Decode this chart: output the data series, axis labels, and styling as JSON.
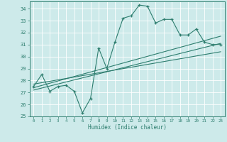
{
  "bg_color": "#cdeaea",
  "grid_color": "#b8d8d8",
  "line_color": "#2d7d6e",
  "xlabel": "Humidex (Indice chaleur)",
  "xlim": [
    -0.5,
    23.5
  ],
  "ylim": [
    25,
    34.6
  ],
  "yticks": [
    25,
    26,
    27,
    28,
    29,
    30,
    31,
    32,
    33,
    34
  ],
  "xticks": [
    0,
    1,
    2,
    3,
    4,
    5,
    6,
    7,
    8,
    9,
    10,
    11,
    12,
    13,
    14,
    15,
    16,
    17,
    18,
    19,
    20,
    21,
    22,
    23
  ],
  "series1_x": [
    0,
    1,
    2,
    3,
    4,
    5,
    6,
    7,
    8,
    9,
    10,
    11,
    12,
    13,
    14,
    15,
    16,
    17,
    18,
    19,
    20,
    21,
    22,
    23
  ],
  "series1_y": [
    27.5,
    28.5,
    27.1,
    27.5,
    27.6,
    27.1,
    25.3,
    26.5,
    30.7,
    29.0,
    31.2,
    33.2,
    33.4,
    34.3,
    34.2,
    32.8,
    33.1,
    33.1,
    31.8,
    31.8,
    32.3,
    31.2,
    31.0,
    31.0
  ],
  "series2_x": [
    0,
    23
  ],
  "series2_y": [
    27.4,
    31.7
  ],
  "series3_x": [
    0,
    23
  ],
  "series3_y": [
    27.7,
    30.4
  ],
  "series4_x": [
    0,
    23
  ],
  "series4_y": [
    27.2,
    31.1
  ]
}
